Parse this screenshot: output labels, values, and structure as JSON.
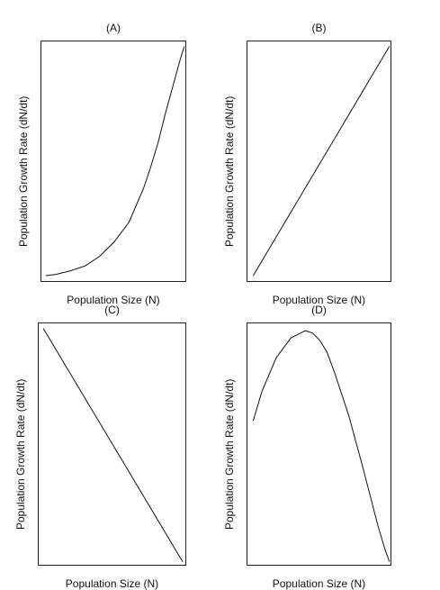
{
  "chart_data": [
    {
      "type": "line",
      "title": "(A)",
      "xlabel": "Population Size (N)",
      "ylabel": "Population Growth Rate (dN/dt)",
      "xlim": [
        0,
        1
      ],
      "ylim": [
        0,
        1
      ],
      "series": [
        {
          "x": [
            0.03,
            0.1,
            0.2,
            0.3,
            0.4,
            0.5,
            0.6,
            0.7,
            0.75,
            0.8,
            0.85,
            0.9,
            0.95,
            0.98
          ],
          "y": [
            0.03,
            0.035,
            0.05,
            0.07,
            0.11,
            0.17,
            0.25,
            0.39,
            0.48,
            0.58,
            0.7,
            0.81,
            0.92,
            0.98
          ]
        }
      ]
    },
    {
      "type": "line",
      "title": "(B)",
      "xlabel": "Population Size (N)",
      "ylabel": "Population Growth Rate (dN/dt)",
      "xlim": [
        0,
        1
      ],
      "ylim": [
        0,
        1
      ],
      "series": [
        {
          "x": [
            0.04,
            0.98
          ],
          "y": [
            0.03,
            0.98
          ]
        }
      ]
    },
    {
      "type": "line",
      "title": "(C)",
      "xlabel": "Population Size (N)",
      "ylabel": "Population Growth Rate (dN/dt)",
      "xlim": [
        0,
        1
      ],
      "ylim": [
        0,
        1
      ],
      "series": [
        {
          "x": [
            0.03,
            0.97
          ],
          "y": [
            0.98,
            0.02
          ]
        }
      ]
    },
    {
      "type": "line",
      "title": "(D)",
      "xlabel": "Population Size (N)",
      "ylabel": "Population Growth Rate (dN/dt)",
      "xlim": [
        0,
        1
      ],
      "ylim": [
        0,
        1
      ],
      "series": [
        {
          "x": [
            0.04,
            0.1,
            0.2,
            0.3,
            0.4,
            0.45,
            0.5,
            0.55,
            0.6,
            0.7,
            0.8,
            0.9,
            0.95,
            0.98
          ],
          "y": [
            0.6,
            0.72,
            0.86,
            0.94,
            0.97,
            0.96,
            0.93,
            0.88,
            0.8,
            0.62,
            0.4,
            0.17,
            0.07,
            0.02
          ]
        }
      ]
    }
  ]
}
